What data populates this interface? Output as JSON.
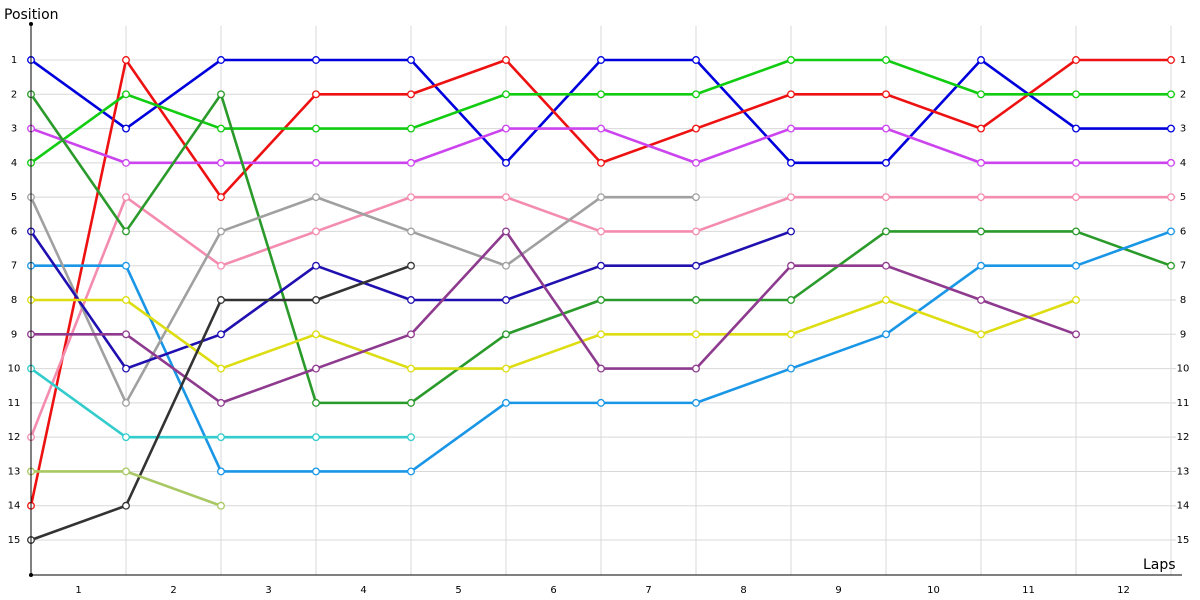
{
  "chart_data": {
    "type": "line",
    "y_label": "Position",
    "x_label": "Laps",
    "categories": [
      "1",
      "2",
      "3",
      "4",
      "5",
      "6",
      "7",
      "8",
      "9",
      "10",
      "11",
      "12"
    ],
    "x": [
      0,
      1,
      2,
      3,
      4,
      5,
      6,
      7,
      8,
      9,
      10,
      11,
      12
    ],
    "xlim": [
      0,
      12.1
    ],
    "ylim": [
      16,
      0
    ],
    "yticks": [
      1,
      2,
      3,
      4,
      5,
      6,
      7,
      8,
      9,
      10,
      11,
      12,
      13,
      14,
      15
    ],
    "grid": true,
    "series": [
      {
        "color": "#0000dd",
        "values": [
          1,
          3,
          1,
          1,
          1,
          4,
          1,
          1,
          4,
          4,
          1,
          3,
          3
        ]
      },
      {
        "color": "#ee1111",
        "values": [
          14,
          1,
          5,
          2,
          2,
          1,
          4,
          3,
          2,
          2,
          3,
          1,
          1
        ]
      },
      {
        "color": "#11cc11",
        "values": [
          4,
          2,
          3,
          3,
          3,
          2,
          2,
          2,
          1,
          1,
          2,
          2,
          2
        ]
      },
      {
        "color": "#cc44ee",
        "values": [
          3,
          4,
          4,
          4,
          4,
          3,
          3,
          4,
          3,
          3,
          4,
          4,
          4
        ]
      },
      {
        "color": "#f48cb0",
        "values": [
          12,
          5,
          7,
          6,
          5,
          5,
          6,
          6,
          5,
          5,
          5,
          5,
          5
        ]
      },
      {
        "color": "#2a9a2a",
        "values": [
          2,
          6,
          2,
          11,
          11,
          9,
          8,
          8,
          8,
          6,
          6,
          6,
          7
        ]
      },
      {
        "color": "#1a96e6",
        "values": [
          7,
          7,
          13,
          13,
          13,
          11,
          11,
          11,
          10,
          9,
          7,
          7,
          6
        ]
      },
      {
        "color": "#a0a0a0",
        "values": [
          5,
          11,
          6,
          5,
          6,
          7,
          5,
          5,
          null,
          null,
          null,
          null,
          null
        ]
      },
      {
        "color": "#2010b0",
        "values": [
          6,
          10,
          9,
          7,
          8,
          8,
          7,
          7,
          6,
          null,
          null,
          null,
          null
        ]
      },
      {
        "color": "#dddd11",
        "values": [
          8,
          8,
          10,
          9,
          10,
          10,
          9,
          9,
          9,
          8,
          9,
          8,
          null
        ]
      },
      {
        "color": "#8e3a8e",
        "values": [
          9,
          9,
          11,
          10,
          9,
          6,
          10,
          10,
          7,
          7,
          8,
          9,
          null
        ]
      },
      {
        "color": "#33cccc",
        "values": [
          10,
          12,
          12,
          12,
          12,
          null,
          null,
          null,
          null,
          null,
          null,
          null,
          null
        ]
      },
      {
        "color": "#333333",
        "values": [
          15,
          14,
          8,
          8,
          7,
          null,
          null,
          null,
          null,
          null,
          null,
          null,
          null
        ]
      },
      {
        "color": "#a8c864",
        "values": [
          13,
          13,
          14,
          null,
          null,
          null,
          null,
          null,
          null,
          null,
          null,
          null,
          null
        ]
      }
    ]
  }
}
